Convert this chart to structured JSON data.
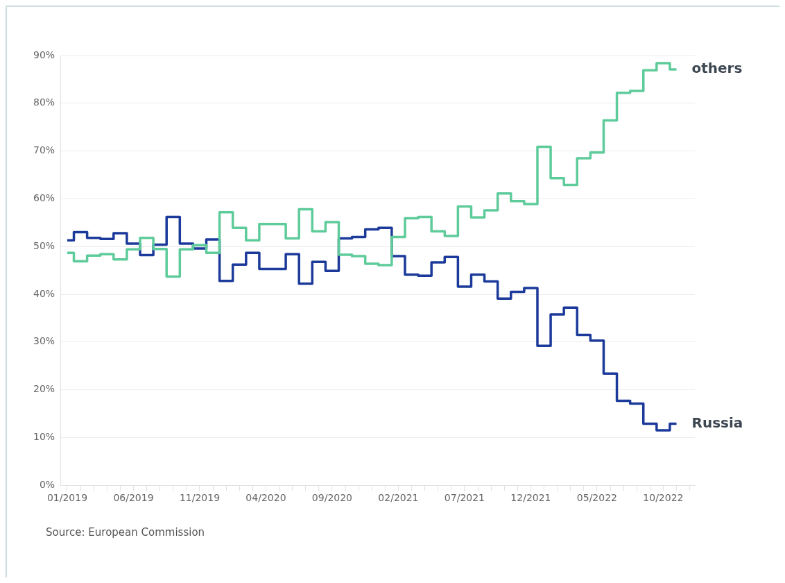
{
  "chart_data": {
    "type": "step",
    "x": [
      "2019-01",
      "2019-02",
      "2019-03",
      "2019-04",
      "2019-05",
      "2019-06",
      "2019-07",
      "2019-08",
      "2019-09",
      "2019-10",
      "2019-11",
      "2019-12",
      "2020-01",
      "2020-02",
      "2020-03",
      "2020-04",
      "2020-05",
      "2020-06",
      "2020-07",
      "2020-08",
      "2020-09",
      "2020-10",
      "2020-11",
      "2020-12",
      "2021-01",
      "2021-02",
      "2021-03",
      "2021-04",
      "2021-05",
      "2021-06",
      "2021-07",
      "2021-08",
      "2021-09",
      "2021-10",
      "2021-11",
      "2021-12",
      "2022-01",
      "2022-02",
      "2022-03",
      "2022-04",
      "2022-05",
      "2022-06",
      "2022-07",
      "2022-08",
      "2022-09",
      "2022-10",
      "2022-11"
    ],
    "series": [
      {
        "name": "others",
        "color": "#5ecb9a",
        "values": [
          48.7,
          46.9,
          48.1,
          48.4,
          47.3,
          49.4,
          51.8,
          49.5,
          43.7,
          49.4,
          50.3,
          48.7,
          57.2,
          53.9,
          51.3,
          54.7,
          54.7,
          51.7,
          57.8,
          53.2,
          55.1,
          48.3,
          48.0,
          46.4,
          46.1,
          52.0,
          55.9,
          56.2,
          53.2,
          52.2,
          58.4,
          56.1,
          57.6,
          61.1,
          59.5,
          58.9,
          70.9,
          64.3,
          62.9,
          68.5,
          69.7,
          76.4,
          82.2,
          82.6,
          86.9,
          88.4,
          87.1
        ]
      },
      {
        "name": "Russia",
        "color": "#1b3a9a",
        "values": [
          51.3,
          53.0,
          51.8,
          51.6,
          52.8,
          50.6,
          48.2,
          50.4,
          56.2,
          50.6,
          49.6,
          51.5,
          42.8,
          46.2,
          48.7,
          45.3,
          45.3,
          48.4,
          42.2,
          46.8,
          44.9,
          51.7,
          52.0,
          53.6,
          53.9,
          48.0,
          44.1,
          43.9,
          46.7,
          47.8,
          41.6,
          44.1,
          42.7,
          39.1,
          40.5,
          41.3,
          29.2,
          35.8,
          37.2,
          31.5,
          30.3,
          23.4,
          17.7,
          17.1,
          12.9,
          11.5,
          12.9
        ]
      }
    ],
    "xlim": [
      "2018-12-16",
      "2022-12-13"
    ],
    "xticks": [
      {
        "value": "2019-01",
        "label": "01/2019"
      },
      {
        "value": "2019-02",
        "label": null
      },
      {
        "value": "2019-03",
        "label": null
      },
      {
        "value": "2019-04",
        "label": null
      },
      {
        "value": "2019-05",
        "label": null
      },
      {
        "value": "2019-06",
        "label": "06/2019"
      },
      {
        "value": "2019-07",
        "label": null
      },
      {
        "value": "2019-08",
        "label": null
      },
      {
        "value": "2019-09",
        "label": null
      },
      {
        "value": "2019-10",
        "label": null
      },
      {
        "value": "2019-11",
        "label": "11/2019"
      },
      {
        "value": "2019-12",
        "label": null
      },
      {
        "value": "2020-01",
        "label": null
      },
      {
        "value": "2020-02",
        "label": null
      },
      {
        "value": "2020-03",
        "label": null
      },
      {
        "value": "2020-04",
        "label": "04/2020"
      },
      {
        "value": "2020-05",
        "label": null
      },
      {
        "value": "2020-06",
        "label": null
      },
      {
        "value": "2020-07",
        "label": null
      },
      {
        "value": "2020-08",
        "label": null
      },
      {
        "value": "2020-09",
        "label": "09/2020"
      },
      {
        "value": "2020-10",
        "label": null
      },
      {
        "value": "2020-11",
        "label": null
      },
      {
        "value": "2020-12",
        "label": null
      },
      {
        "value": "2021-01",
        "label": null
      },
      {
        "value": "2021-02",
        "label": "02/2021"
      },
      {
        "value": "2021-03",
        "label": null
      },
      {
        "value": "2021-04",
        "label": null
      },
      {
        "value": "2021-05",
        "label": null
      },
      {
        "value": "2021-06",
        "label": null
      },
      {
        "value": "2021-07",
        "label": "07/2021"
      },
      {
        "value": "2021-08",
        "label": null
      },
      {
        "value": "2021-09",
        "label": null
      },
      {
        "value": "2021-10",
        "label": null
      },
      {
        "value": "2021-11",
        "label": null
      },
      {
        "value": "2021-12",
        "label": "12/2021"
      },
      {
        "value": "2022-01",
        "label": null
      },
      {
        "value": "2022-02",
        "label": null
      },
      {
        "value": "2022-03",
        "label": null
      },
      {
        "value": "2022-04",
        "label": null
      },
      {
        "value": "2022-05",
        "label": "05/2022"
      },
      {
        "value": "2022-06",
        "label": null
      },
      {
        "value": "2022-07",
        "label": null
      },
      {
        "value": "2022-08",
        "label": null
      },
      {
        "value": "2022-09",
        "label": null
      },
      {
        "value": "2022-10",
        "label": "10/2022"
      },
      {
        "value": "2022-11",
        "label": null
      },
      {
        "value": "2022-12",
        "label": null
      }
    ],
    "ylim": [
      0,
      90
    ],
    "yticks": [
      {
        "value": 0,
        "label": "0%"
      },
      {
        "value": 10,
        "label": "10%"
      },
      {
        "value": 20,
        "label": "20%"
      },
      {
        "value": 30,
        "label": "30%"
      },
      {
        "value": 40,
        "label": "40%"
      },
      {
        "value": 50,
        "label": "50%"
      },
      {
        "value": 60,
        "label": "60%"
      },
      {
        "value": 70,
        "label": "70%"
      },
      {
        "value": 80,
        "label": "80%"
      },
      {
        "value": 90,
        "label": "90%"
      }
    ],
    "grid": "y",
    "legend": false,
    "annotations": [
      "Source: European Commission"
    ]
  }
}
